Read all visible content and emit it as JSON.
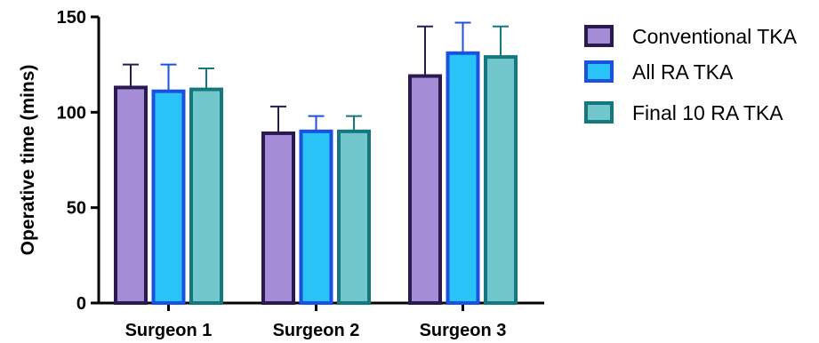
{
  "chart_data": {
    "type": "bar",
    "title": "",
    "xlabel": "",
    "ylabel": "Operative time (mins)",
    "ylim": [
      0,
      150
    ],
    "yticks": [
      0,
      50,
      100,
      150
    ],
    "grid": false,
    "legend_position": "right",
    "categories": [
      "Surgeon 1",
      "Surgeon 2",
      "Surgeon 3"
    ],
    "series": [
      {
        "name": "Conventional TKA",
        "fill": "#a58cd6",
        "stroke": "#2b1a4f",
        "values": [
          113,
          89,
          119
        ],
        "error": [
          12,
          14,
          26
        ]
      },
      {
        "name": "All RA TKA",
        "fill": "#29c3f7",
        "stroke": "#1a52e0",
        "values": [
          111,
          90,
          131
        ],
        "error": [
          14,
          8,
          16
        ]
      },
      {
        "name": "Final 10 RA TKA",
        "fill": "#71c7cc",
        "stroke": "#14787e",
        "values": [
          112,
          90,
          129
        ],
        "error": [
          11,
          8,
          16
        ]
      }
    ]
  }
}
